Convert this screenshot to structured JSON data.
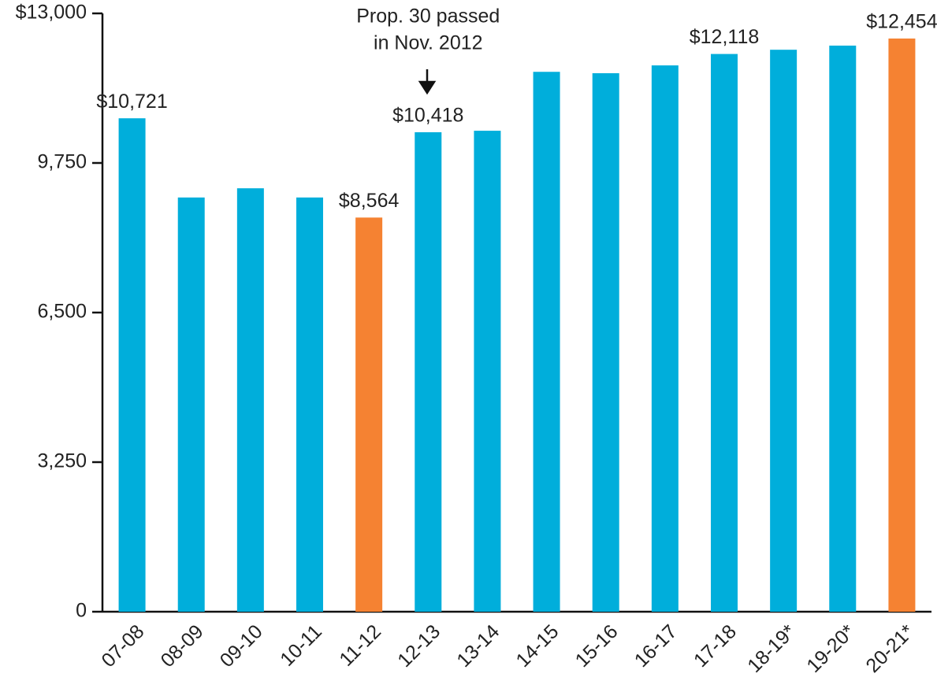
{
  "chart_data": {
    "type": "bar",
    "categories": [
      "07-08",
      "08-09",
      "09-10",
      "10-11",
      "11-12",
      "12-13",
      "13-14",
      "14-15",
      "15-16",
      "16-17",
      "17-18",
      "18-19*",
      "19-20*",
      "20-21*"
    ],
    "values": [
      10721,
      9000,
      9200,
      9000,
      8564,
      10418,
      10450,
      11730,
      11700,
      11870,
      12118,
      12210,
      12300,
      12454
    ],
    "value_labels": [
      "$10,721",
      null,
      null,
      null,
      "$8,564",
      "$10,418",
      null,
      null,
      null,
      null,
      "$12,118",
      null,
      null,
      "$12,454"
    ],
    "colors": [
      "#00aedb",
      "#00aedb",
      "#00aedb",
      "#00aedb",
      "#f58232",
      "#00aedb",
      "#00aedb",
      "#00aedb",
      "#00aedb",
      "#00aedb",
      "#00aedb",
      "#00aedb",
      "#00aedb",
      "#f58232"
    ],
    "ylim": [
      0,
      13000
    ],
    "yticks": [
      0,
      {
        "value": 3250,
        "label": "3,250"
      },
      {
        "value": 6500,
        "label": "6,500"
      },
      {
        "value": 9750,
        "label": "9,750"
      },
      {
        "value": 13000,
        "label": "$13,000"
      }
    ],
    "annotation": {
      "lines": [
        "Prop. 30 passed",
        "in Nov. 2012"
      ],
      "category_index": 5
    }
  }
}
